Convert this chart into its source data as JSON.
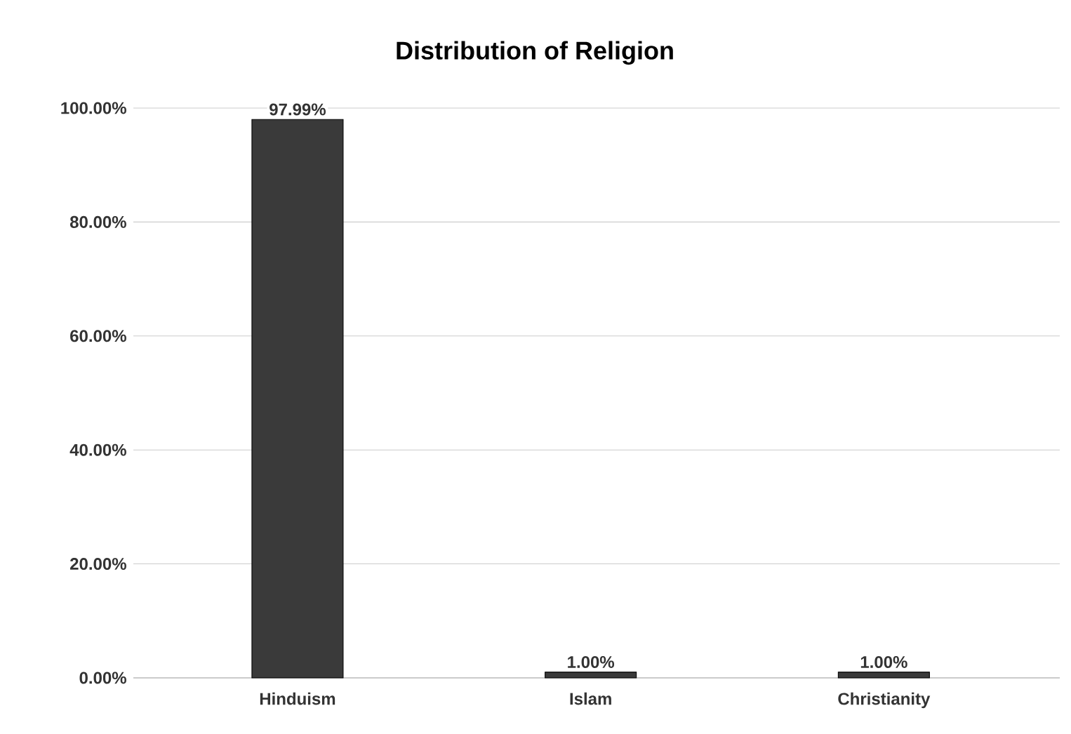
{
  "chart_data": {
    "type": "bar",
    "title": "Distribution of Religion",
    "categories": [
      "Hinduism",
      "Islam",
      "Christianity"
    ],
    "values": [
      97.99,
      1.0,
      1.0
    ],
    "value_labels": [
      "97.99%",
      "1.00%",
      "1.00%"
    ],
    "color": "#3a3a3a",
    "ylim": [
      0,
      100
    ],
    "yticks": [
      {
        "value": 0,
        "label": "0.00%"
      },
      {
        "value": 20,
        "label": "20.00%"
      },
      {
        "value": 40,
        "label": "40.00%"
      },
      {
        "value": 60,
        "label": "60.00%"
      },
      {
        "value": 80,
        "label": "80.00%"
      },
      {
        "value": 100,
        "label": "100.00%"
      }
    ],
    "grid": "y"
  }
}
